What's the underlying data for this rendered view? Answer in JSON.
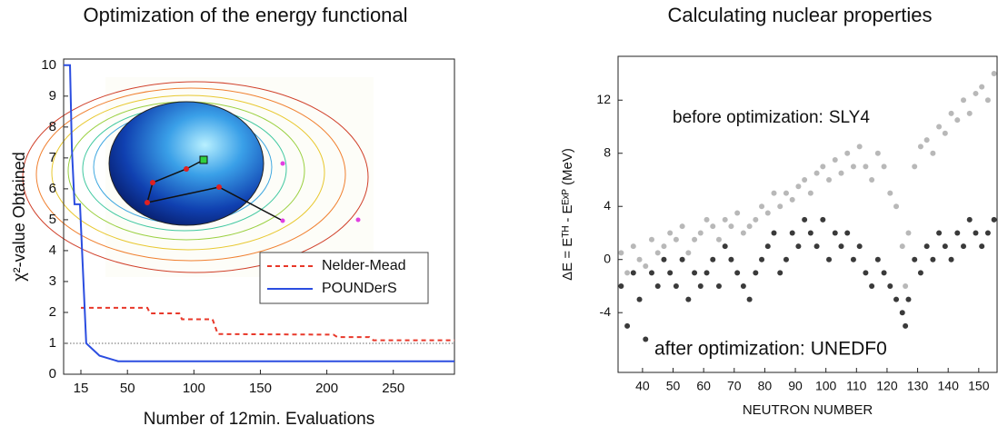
{
  "chart_data": [
    {
      "type": "line",
      "title": "Optimization of the energy functional",
      "x_label": "Number of 12min. Evaluations",
      "y_label": "χ²-value Obtained",
      "xlim": [
        2,
        296
      ],
      "ylim": [
        0,
        10.2
      ],
      "xticks": [
        15,
        50,
        100,
        150,
        200,
        250
      ],
      "yticks": [
        0,
        1,
        2,
        3,
        4,
        5,
        6,
        7,
        8,
        9,
        10
      ],
      "reference_line": 1,
      "legend": "center right",
      "series": [
        {
          "name": "Nelder-Mead",
          "color": "#e8382a",
          "style": "dashed",
          "x": [
            15,
            65,
            67,
            89,
            91,
            114,
            118,
            205,
            208,
            232,
            235,
            296
          ],
          "values": [
            2.15,
            2.15,
            1.97,
            1.97,
            1.78,
            1.78,
            1.3,
            1.28,
            1.2,
            1.2,
            1.1,
            1.1
          ]
        },
        {
          "name": "POUNDerS",
          "color": "#2b4de0",
          "style": "solid",
          "x": [
            2,
            6.8,
            8.2,
            10.2,
            14.3,
            19,
            29,
            43,
            296
          ],
          "values": [
            10,
            10,
            7.3,
            5.5,
            5.5,
            1,
            0.6,
            0.42,
            0.42
          ]
        }
      ]
    },
    {
      "type": "scatter",
      "title": "Calculating nuclear properties",
      "x_label": "NEUTRON NUMBER",
      "y_label": "ΔE = Eᵀᴴ - Eᴱˣᴾ (MeV)",
      "xlim": [
        32,
        156
      ],
      "ylim": [
        -8.5,
        15.3
      ],
      "xticks": [
        40,
        50,
        60,
        70,
        80,
        90,
        100,
        110,
        120,
        130,
        140,
        150
      ],
      "yticks": [
        -4,
        0,
        4,
        8,
        12
      ],
      "annotations": [
        "before optimization:",
        "after optimization:"
      ],
      "series": [
        {
          "name": "SLY4",
          "color": "#b8b8b8",
          "x": [
            33,
            35,
            37,
            39,
            41,
            43,
            45,
            47,
            49,
            51,
            53,
            55,
            57,
            59,
            61,
            63,
            65,
            67,
            69,
            71,
            73,
            75,
            77,
            79,
            81,
            83,
            85,
            87,
            89,
            91,
            93,
            95,
            97,
            99,
            101,
            103,
            105,
            107,
            109,
            111,
            113,
            115,
            117,
            119,
            121,
            123,
            125,
            126,
            127,
            129,
            131,
            133,
            135,
            137,
            139,
            141,
            143,
            145,
            147,
            149,
            151,
            153,
            155
          ],
          "values": [
            0.5,
            -1,
            1,
            0,
            -0.5,
            1.5,
            0.5,
            1,
            2,
            1.5,
            2.5,
            0.5,
            1.5,
            2,
            3,
            2.5,
            1.5,
            3,
            2.5,
            3.5,
            2,
            2.5,
            3,
            4,
            3.5,
            5,
            4,
            5,
            4.5,
            5.5,
            6,
            5,
            6.5,
            7,
            6,
            7.5,
            6.5,
            8,
            7,
            8.5,
            7,
            6,
            8,
            7,
            5,
            4,
            1,
            -2,
            2,
            7,
            8.5,
            9,
            8,
            10,
            9.5,
            11,
            10.5,
            12,
            11,
            12.5,
            13,
            12,
            14
          ]
        },
        {
          "name": "UNEDF0",
          "color": "#3a3a3a",
          "x": [
            33,
            35,
            37,
            39,
            41,
            43,
            45,
            47,
            49,
            51,
            53,
            55,
            57,
            59,
            61,
            63,
            65,
            67,
            69,
            71,
            73,
            75,
            77,
            79,
            81,
            83,
            85,
            87,
            89,
            91,
            93,
            95,
            97,
            99,
            101,
            103,
            105,
            107,
            109,
            111,
            113,
            115,
            117,
            119,
            121,
            123,
            125,
            126,
            127,
            129,
            131,
            133,
            135,
            137,
            139,
            141,
            143,
            145,
            147,
            149,
            151,
            153,
            155
          ],
          "values": [
            -2,
            -5,
            -1,
            -3,
            -6,
            -1,
            -2,
            0,
            -1,
            -2,
            0,
            -3,
            -1,
            -2,
            -1,
            0,
            -2,
            1,
            0,
            -1,
            -2,
            -3,
            -1,
            0,
            1,
            2,
            -1,
            0,
            2,
            1,
            3,
            2,
            1,
            3,
            0,
            2,
            1,
            2,
            0,
            1,
            -1,
            -2,
            0,
            -1,
            -2,
            -3,
            -4,
            -5,
            -3,
            0,
            -1,
            1,
            0,
            2,
            1,
            0,
            2,
            1,
            3,
            2,
            1,
            2,
            3
          ]
        }
      ]
    }
  ]
}
